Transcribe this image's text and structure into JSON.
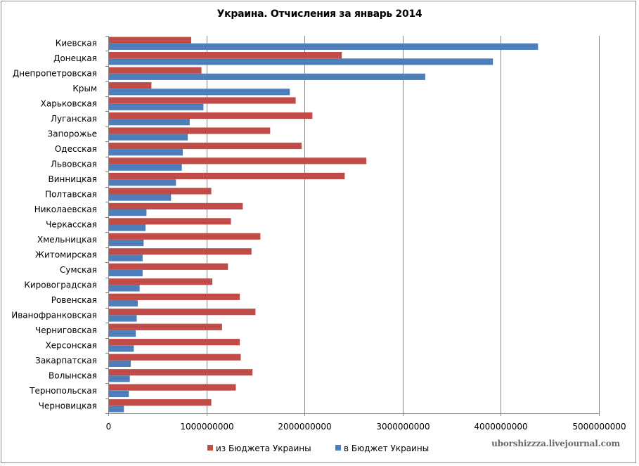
{
  "chart_data": {
    "type": "bar",
    "orientation": "horizontal",
    "title": "Украина. Отчисления за январь 2014",
    "xlabel": "",
    "ylabel": "",
    "xlim": [
      0,
      5000000000
    ],
    "xticks": [
      0,
      1000000000,
      2000000000,
      3000000000,
      4000000000,
      5000000000
    ],
    "xtick_labels": [
      "0",
      "1000000000",
      "2000000000",
      "3000000000",
      "4000000000",
      "5000000000"
    ],
    "grid": true,
    "legend_position": "bottom",
    "categories": [
      "Киевская",
      "Донецкая",
      "Днепропетровская",
      "Крым",
      "Харьковская",
      "Луганская",
      "Запорожье",
      "Одесская",
      "Львовская",
      "Винницкая",
      "Полтавская",
      "Николаевская",
      "Черкасская",
      "Хмельницкая",
      "Житомирская",
      "Сумская",
      "Кировоградская",
      "Ровенская",
      "Иванофранковская",
      "Черниговская",
      "Херсонская",
      "Закарпатская",
      "Волынская",
      "Тернопольская",
      "Черновицкая"
    ],
    "series": [
      {
        "name": "из Бюджета Украины",
        "color": "#c0504d",
        "values": [
          845000000,
          2380000000,
          950000000,
          440000000,
          1910000000,
          2080000000,
          1650000000,
          1970000000,
          2630000000,
          2410000000,
          1050000000,
          1370000000,
          1250000000,
          1550000000,
          1460000000,
          1220000000,
          1060000000,
          1340000000,
          1500000000,
          1160000000,
          1340000000,
          1350000000,
          1470000000,
          1300000000,
          1050000000
        ]
      },
      {
        "name": "в Бюджет Украины",
        "color": "#4f81bd",
        "values": [
          4380000000,
          3920000000,
          3230000000,
          1850000000,
          970000000,
          830000000,
          810000000,
          760000000,
          750000000,
          690000000,
          640000000,
          390000000,
          380000000,
          360000000,
          350000000,
          350000000,
          320000000,
          300000000,
          290000000,
          280000000,
          260000000,
          230000000,
          220000000,
          210000000,
          160000000
        ]
      }
    ]
  },
  "watermark": "uborshizzza.livejournal.com"
}
